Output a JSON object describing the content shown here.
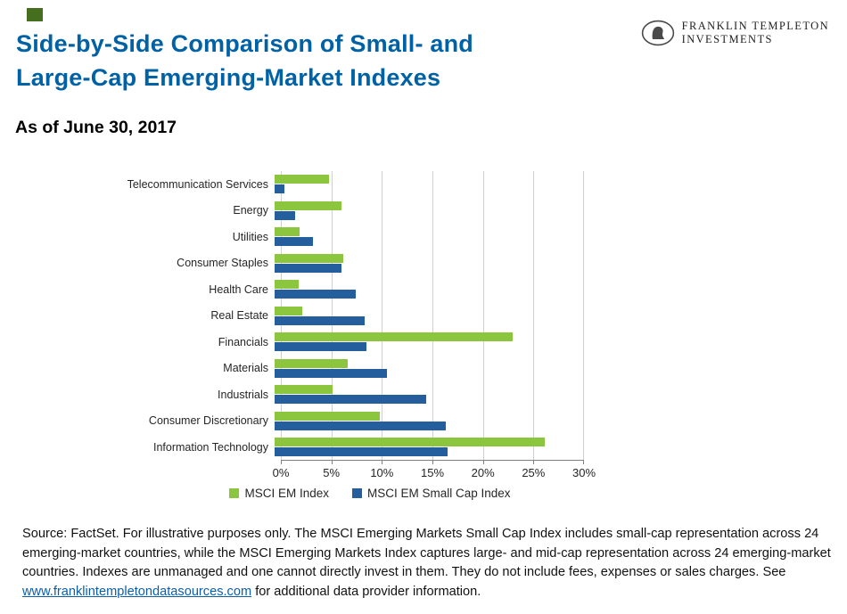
{
  "page": {
    "accent_color": "#456F1E",
    "title_color": "#0061A5"
  },
  "header": {
    "title_line1": "Side-by-Side Comparison of Small- and",
    "title_line2": "Large-Cap Emerging-Market Indexes",
    "as_of": "As of June 30, 2017",
    "brand": {
      "line1": "FRANKLIN TEMPLETON",
      "line2": "INVESTMENTS"
    }
  },
  "chart_data": {
    "type": "bar",
    "orientation": "horizontal",
    "title": "Side-by-Side Comparison of Small- and Large-Cap Emerging-Market Indexes",
    "subtitle": "As of June 30, 2017",
    "categories": [
      "Telecommunication Services",
      "Energy",
      "Utilities",
      "Consumer Staples",
      "Health Care",
      "Real Estate",
      "Financials",
      "Materials",
      "Industrials",
      "Consumer Discretionary",
      "Information Technology"
    ],
    "series": [
      {
        "name": "MSCI EM Index",
        "color": "#8CC63F",
        "values": [
          5.4,
          6.6,
          2.5,
          6.8,
          2.4,
          2.7,
          23.6,
          7.2,
          5.7,
          10.4,
          26.7
        ]
      },
      {
        "name": "MSCI EM Small Cap Index",
        "color": "#255E9C",
        "values": [
          1.0,
          2.0,
          3.8,
          6.6,
          8.0,
          8.9,
          9.1,
          11.1,
          15.0,
          16.9,
          17.1
        ]
      }
    ],
    "xlim": [
      0,
      30
    ],
    "x_ticks": [
      "0%",
      "5%",
      "10%",
      "15%",
      "20%",
      "25%",
      "30%"
    ],
    "grid": "vertical",
    "legend_position": "bottom"
  },
  "footer": {
    "source_before": "Source: FactSet. For illustrative purposes only. The MSCI Emerging Markets Small Cap Index includes small-cap representation across 24 emerging-market countries, while the MSCI Emerging Markets Index captures large- and mid-cap representation across 24 emerging-market countries. Indexes are unmanaged and one cannot directly invest in them. They do not include fees, expenses or sales charges. See ",
    "link_text": "www.franklintempletondatasources.com",
    "source_after": " for additional data provider information."
  }
}
